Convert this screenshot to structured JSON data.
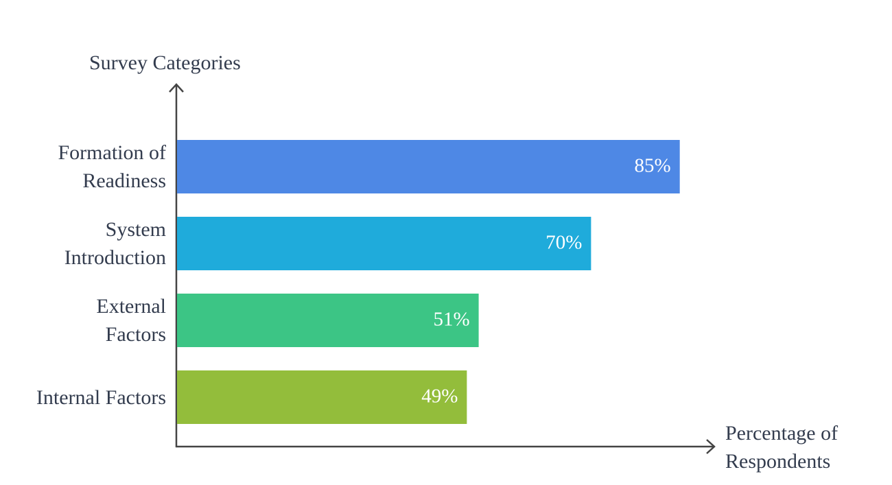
{
  "chart_data": {
    "type": "bar",
    "orientation": "horizontal",
    "x_label": "Percentage of Respondents",
    "y_label": "Survey Categories",
    "categories": [
      "Formation of Readiness",
      "System Introduction",
      "External Factors",
      "Internal Factors"
    ],
    "series": [
      {
        "values": [
          85,
          70,
          51,
          49
        ],
        "value_labels": [
          "85%",
          "70%",
          "51%",
          "49%"
        ],
        "colors": [
          "#4e88e5",
          "#1fabdb",
          "#3cc585",
          "#93bd3b"
        ]
      }
    ]
  }
}
